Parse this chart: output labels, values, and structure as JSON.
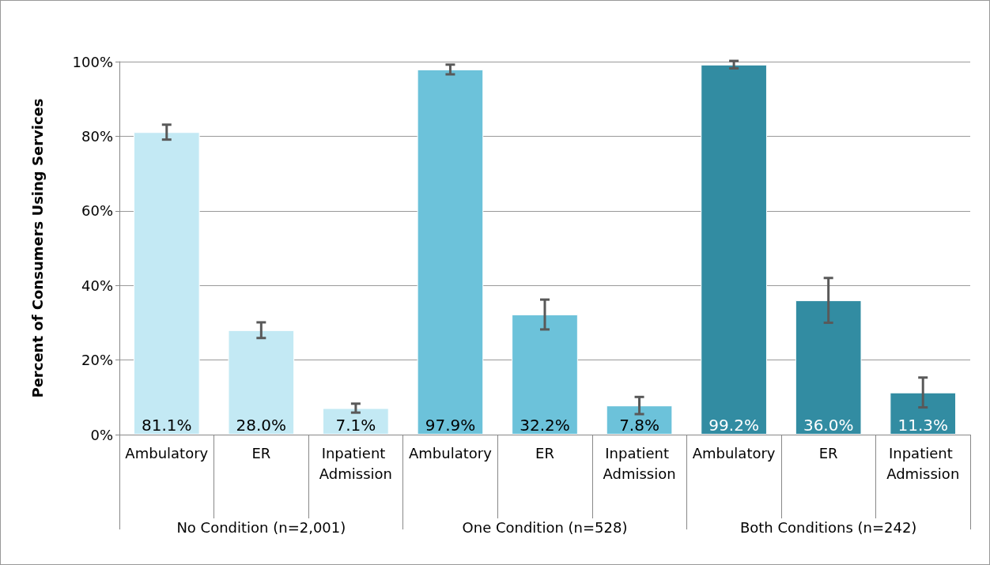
{
  "chart_data": {
    "type": "bar",
    "ylabel": "Percent of Consumers Using Services",
    "categories": [
      "Ambulatory",
      "ER",
      "Inpatient Admission",
      "Ambulatory",
      "ER",
      "Inpatient Admission",
      "Ambulatory",
      "ER",
      "Inpatient Admission"
    ],
    "annotations": [
      "No Condition (n=2,001)",
      "One Condition (n=528)",
      "Both Conditions (n=242)"
    ],
    "series": [
      {
        "colors": [
          "#c3e9f4",
          "#c3e9f4",
          "#c3e9f4",
          "#6cc2da",
          "#6cc2da",
          "#6cc2da",
          "#328ca2",
          "#328ca2",
          "#328ca2"
        ],
        "values": [
          81.1,
          28.0,
          7.1,
          97.9,
          32.2,
          7.8,
          99.2,
          36.0,
          11.3
        ],
        "errors": [
          2,
          2.1,
          1.2,
          1.3,
          4,
          2.3,
          1,
          6,
          4
        ],
        "value_labels": [
          "81.1%",
          "28.0%",
          "7.1%",
          "97.9%",
          "32.2%",
          "7.8%",
          "99.2%",
          "36.0%",
          "11.3%"
        ]
      }
    ],
    "ylim": [
      0,
      100
    ],
    "yticks": [
      {
        "value": 0,
        "label": "0%"
      },
      {
        "value": 20,
        "label": "20%"
      },
      {
        "value": 40,
        "label": "40%"
      },
      {
        "value": 60,
        "label": "60%"
      },
      {
        "value": 80,
        "label": "80%"
      },
      {
        "value": 100,
        "label": "100%"
      }
    ],
    "grid": "y"
  }
}
